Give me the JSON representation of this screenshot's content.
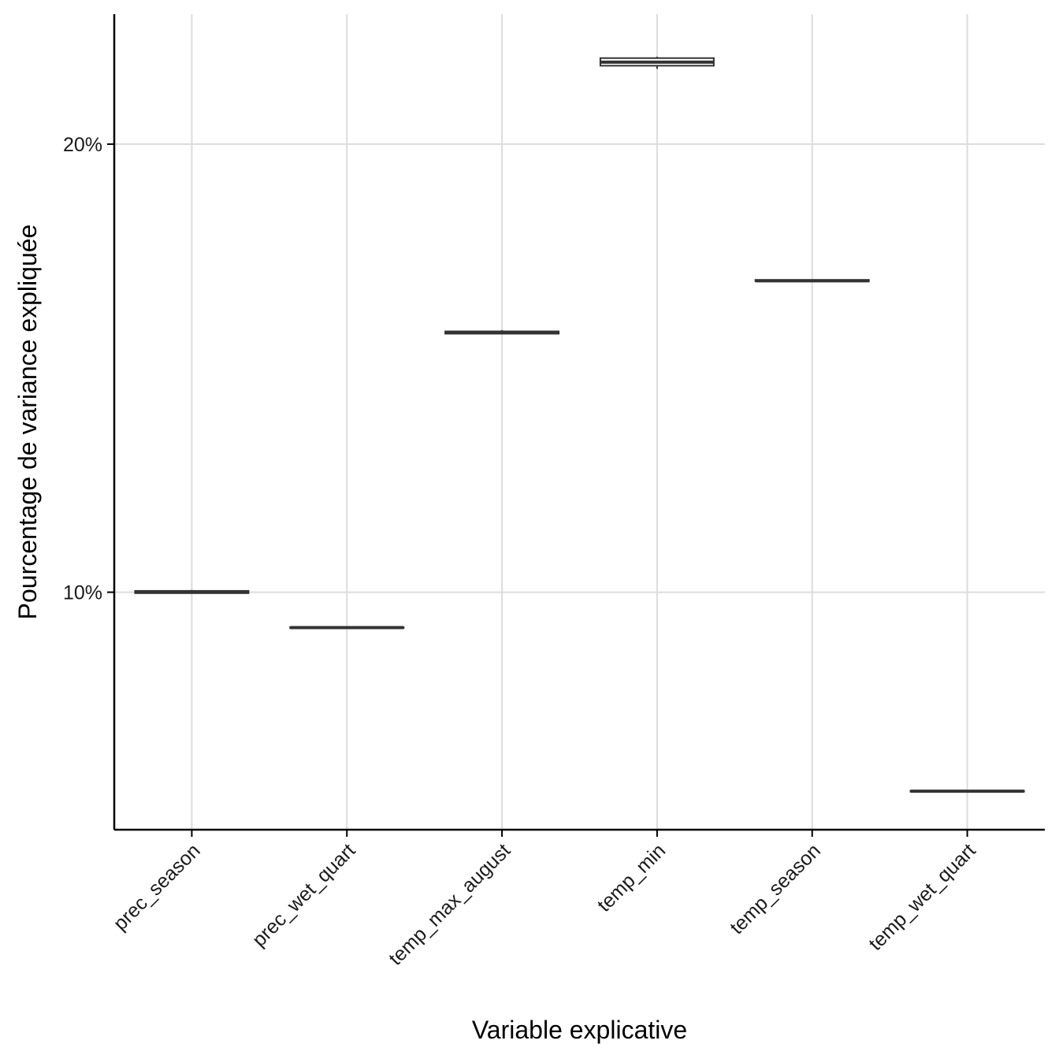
{
  "chart_data": {
    "type": "box",
    "title": "",
    "xlabel": "Variable explicative",
    "ylabel": "Pourcentage de variance expliquée",
    "categories": [
      "prec_season",
      "prec_wet_quart",
      "temp_max_august",
      "temp_min",
      "temp_season",
      "temp_wet_quart"
    ],
    "boxes": [
      {
        "category": "prec_season",
        "min": 9.98,
        "q1": 9.98,
        "median": 10.0,
        "q3": 10.03,
        "max": 10.05
      },
      {
        "category": "prec_wet_quart",
        "min": 9.2,
        "q1": 9.2,
        "median": 9.21,
        "q3": 9.22,
        "max": 9.22
      },
      {
        "category": "temp_max_august",
        "min": 15.77,
        "q1": 15.77,
        "median": 15.8,
        "q3": 15.82,
        "max": 15.85
      },
      {
        "category": "temp_min",
        "min": 21.68,
        "q1": 21.75,
        "median": 21.83,
        "q3": 21.92,
        "max": 21.95
      },
      {
        "category": "temp_season",
        "min": 16.93,
        "q1": 16.94,
        "median": 16.95,
        "q3": 16.97,
        "max": 16.98
      },
      {
        "category": "temp_wet_quart",
        "min": 5.54,
        "q1": 5.55,
        "median": 5.56,
        "q3": 5.57,
        "max": 5.58
      }
    ],
    "y_ticks": [
      10,
      20
    ],
    "y_tick_labels": [
      "10%",
      "20%"
    ],
    "ylim": [
      4.7,
      22.9
    ],
    "y_scale": "percent",
    "grid": true,
    "box_color": "#333333",
    "box_fill": "#ffffff",
    "grid_color": "#dcdcdc",
    "axis_color": "#000000"
  }
}
